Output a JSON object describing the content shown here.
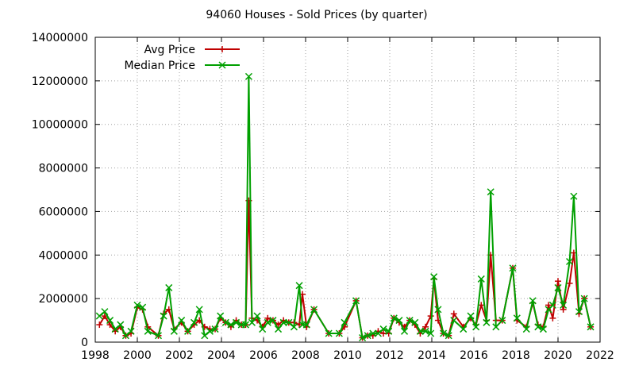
{
  "chart_data": {
    "type": "line",
    "title": "94060 Houses - Sold Prices (by quarter)",
    "xlabel": "",
    "ylabel": "",
    "xlim": [
      1998,
      2022
    ],
    "ylim": [
      0,
      14000000
    ],
    "x_ticks": [
      "1998",
      "2000",
      "2002",
      "2004",
      "2006",
      "2008",
      "2010",
      "2012",
      "2014",
      "2016",
      "2018",
      "2020",
      "2022"
    ],
    "y_ticks": [
      "0",
      "2000000",
      "4000000",
      "6000000",
      "8000000",
      "10000000",
      "12000000",
      "14000000"
    ],
    "grid": true,
    "legend_position": "top-left",
    "series": [
      {
        "name": "Avg Price",
        "color": "#c00000",
        "marker": "plus",
        "x": [
          1998.2,
          1998.45,
          1998.7,
          1998.95,
          1999.2,
          1999.45,
          1999.7,
          2000.0,
          2000.25,
          2000.5,
          2001.0,
          2001.25,
          2001.5,
          2001.75,
          2002.1,
          2002.4,
          2002.7,
          2002.95,
          2003.2,
          2003.45,
          2003.7,
          2003.95,
          2004.2,
          2004.45,
          2004.7,
          2004.95,
          2005.15,
          2005.3,
          2005.45,
          2005.7,
          2005.95,
          2006.2,
          2006.45,
          2006.7,
          2006.95,
          2007.2,
          2007.45,
          2007.7,
          2007.85,
          2008.05,
          2008.4,
          2009.1,
          2009.6,
          2009.85,
          2010.4,
          2010.7,
          2010.95,
          2011.2,
          2011.45,
          2011.7,
          2011.95,
          2012.2,
          2012.45,
          2012.7,
          2012.95,
          2013.2,
          2013.45,
          2013.7,
          2013.95,
          2014.1,
          2014.3,
          2014.55,
          2014.8,
          2015.05,
          2015.5,
          2015.85,
          2016.1,
          2016.35,
          2016.6,
          2016.8,
          2017.05,
          2017.35,
          2017.85,
          2018.05,
          2018.5,
          2018.8,
          2019.05,
          2019.3,
          2019.55,
          2019.75,
          2020.0,
          2020.25,
          2020.55,
          2020.75,
          2021.0,
          2021.25,
          2021.55
        ],
        "values": [
          800000,
          1200000,
          800000,
          500000,
          700000,
          300000,
          400000,
          1600000,
          1500000,
          700000,
          300000,
          1300000,
          1500000,
          600000,
          900000,
          500000,
          800000,
          1000000,
          700000,
          600000,
          600000,
          1100000,
          900000,
          700000,
          1000000,
          800000,
          800000,
          6500000,
          1100000,
          1000000,
          700000,
          1100000,
          1000000,
          800000,
          1000000,
          900000,
          900000,
          800000,
          2200000,
          700000,
          1500000,
          400000,
          400000,
          700000,
          1900000,
          200000,
          300000,
          300000,
          500000,
          400000,
          400000,
          1100000,
          900000,
          700000,
          1000000,
          800000,
          400000,
          700000,
          1200000,
          2900000,
          1000000,
          400000,
          300000,
          1300000,
          700000,
          1100000,
          800000,
          1700000,
          1000000,
          4000000,
          1000000,
          1000000,
          3400000,
          1000000,
          700000,
          1800000,
          800000,
          700000,
          1700000,
          1100000,
          2800000,
          1500000,
          2700000,
          4100000,
          1300000,
          2000000,
          700000
        ]
      },
      {
        "name": "Median Price",
        "color": "#00a000",
        "marker": "cross",
        "x": [
          1998.2,
          1998.45,
          1998.7,
          1998.95,
          1999.2,
          1999.45,
          1999.7,
          2000.0,
          2000.25,
          2000.5,
          2001.0,
          2001.25,
          2001.5,
          2001.75,
          2002.1,
          2002.4,
          2002.7,
          2002.95,
          2003.2,
          2003.45,
          2003.7,
          2003.95,
          2004.2,
          2004.45,
          2004.7,
          2004.95,
          2005.15,
          2005.3,
          2005.45,
          2005.7,
          2005.95,
          2006.2,
          2006.45,
          2006.7,
          2006.95,
          2007.2,
          2007.45,
          2007.7,
          2007.85,
          2008.05,
          2008.4,
          2009.1,
          2009.6,
          2009.85,
          2010.4,
          2010.7,
          2010.95,
          2011.2,
          2011.45,
          2011.7,
          2011.95,
          2012.2,
          2012.45,
          2012.7,
          2012.95,
          2013.2,
          2013.45,
          2013.7,
          2013.95,
          2014.1,
          2014.3,
          2014.55,
          2014.8,
          2015.05,
          2015.5,
          2015.85,
          2016.1,
          2016.35,
          2016.6,
          2016.8,
          2017.05,
          2017.35,
          2017.85,
          2018.05,
          2018.5,
          2018.8,
          2019.05,
          2019.3,
          2019.55,
          2019.75,
          2020.0,
          2020.25,
          2020.55,
          2020.75,
          2021.0,
          2021.25,
          2021.55
        ],
        "values": [
          1200000,
          1400000,
          1000000,
          600000,
          800000,
          300000,
          500000,
          1700000,
          1600000,
          500000,
          300000,
          1200000,
          2500000,
          500000,
          1000000,
          500000,
          900000,
          1500000,
          300000,
          500000,
          600000,
          1200000,
          900000,
          800000,
          900000,
          800000,
          800000,
          12200000,
          900000,
          1200000,
          600000,
          900000,
          1000000,
          600000,
          900000,
          900000,
          700000,
          2600000,
          800000,
          800000,
          1500000,
          400000,
          400000,
          900000,
          1900000,
          200000,
          300000,
          400000,
          400000,
          600000,
          500000,
          1100000,
          1000000,
          500000,
          1000000,
          900000,
          500000,
          500000,
          400000,
          3000000,
          1500000,
          400000,
          300000,
          1000000,
          600000,
          1200000,
          700000,
          2900000,
          900000,
          6900000,
          700000,
          1000000,
          3400000,
          1100000,
          600000,
          1900000,
          700000,
          600000,
          1500000,
          1700000,
          2500000,
          1700000,
          3700000,
          6700000,
          1400000,
          2000000,
          700000
        ]
      }
    ]
  }
}
